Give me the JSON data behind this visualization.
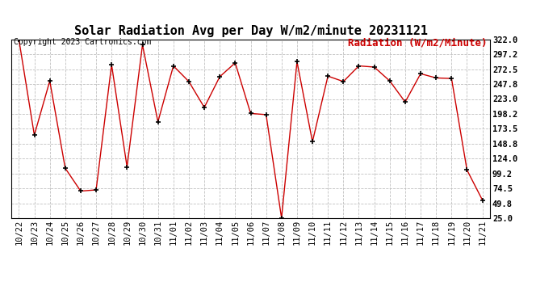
{
  "title": "Solar Radiation Avg per Day W/m2/minute 20231121",
  "copyright": "Copyright 2023 Cartronics.com",
  "legend_label": "Radiation (W/m2/Minute)",
  "dates": [
    "10/22",
    "10/23",
    "10/24",
    "10/25",
    "10/26",
    "10/27",
    "10/28",
    "10/29",
    "10/30",
    "10/31",
    "11/01",
    "11/02",
    "11/03",
    "11/04",
    "11/05",
    "11/06",
    "11/07",
    "11/08",
    "11/09",
    "11/10",
    "11/11",
    "11/12",
    "11/13",
    "11/14",
    "11/15",
    "11/16",
    "11/17",
    "11/18",
    "11/19",
    "11/20",
    "11/21"
  ],
  "values": [
    322.0,
    163.0,
    253.0,
    108.0,
    70.0,
    72.0,
    280.0,
    110.0,
    313.0,
    185.0,
    278.0,
    252.0,
    209.0,
    260.0,
    283.0,
    199.0,
    197.0,
    25.0,
    285.0,
    152.0,
    261.0,
    252.0,
    278.0,
    276.0,
    253.0,
    218.0,
    265.0,
    258.0,
    257.0,
    105.0,
    55.0
  ],
  "ylim": [
    25.0,
    322.0
  ],
  "yticks": [
    25.0,
    49.8,
    74.5,
    99.2,
    124.0,
    148.8,
    173.5,
    198.2,
    223.0,
    247.8,
    272.5,
    297.2,
    322.0
  ],
  "line_color": "#cc0000",
  "marker": "+",
  "marker_color": "#000000",
  "bg_color": "#ffffff",
  "grid_color": "#c0c0c0",
  "title_fontsize": 11,
  "copyright_fontsize": 7,
  "legend_fontsize": 9,
  "tick_fontsize": 7.5,
  "legend_color": "#cc0000",
  "border_color": "#000000"
}
